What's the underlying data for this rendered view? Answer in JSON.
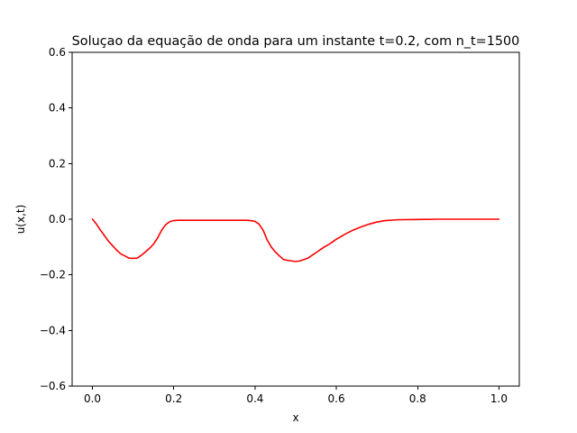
{
  "chart_data": {
    "type": "line",
    "title": "Soluçao da equação de onda para um instante t=0.2, com n_t=1500",
    "xlabel": "x",
    "ylabel": "u(x,t)",
    "xlim": [
      -0.05,
      1.05
    ],
    "ylim": [
      -0.6,
      0.6
    ],
    "xticks": [
      0.0,
      0.2,
      0.4,
      0.6,
      0.8,
      1.0
    ],
    "xtick_labels": [
      "0.0",
      "0.2",
      "0.4",
      "0.6",
      "0.8",
      "1.0"
    ],
    "yticks": [
      -0.6,
      -0.4,
      -0.2,
      0.0,
      0.2,
      0.4,
      0.6
    ],
    "ytick_labels": [
      "−0.6",
      "−0.4",
      "−0.2",
      "0.0",
      "0.2",
      "0.4",
      "0.6"
    ],
    "grid": false,
    "series": [
      {
        "color": "#ff0000",
        "x": [
          0.0,
          0.01,
          0.02,
          0.03,
          0.04,
          0.05,
          0.06,
          0.07,
          0.08,
          0.09,
          0.1,
          0.11,
          0.12,
          0.13,
          0.14,
          0.15,
          0.16,
          0.17,
          0.18,
          0.19,
          0.2,
          0.21,
          0.22,
          0.25,
          0.3,
          0.35,
          0.38,
          0.39,
          0.4,
          0.41,
          0.42,
          0.43,
          0.44,
          0.45,
          0.46,
          0.47,
          0.48,
          0.49,
          0.5,
          0.51,
          0.52,
          0.53,
          0.54,
          0.55,
          0.56,
          0.57,
          0.58,
          0.59,
          0.6,
          0.62,
          0.64,
          0.66,
          0.68,
          0.7,
          0.72,
          0.75,
          0.8,
          0.85,
          0.9,
          0.95,
          1.0
        ],
        "y": [
          0.0,
          -0.018,
          -0.04,
          -0.06,
          -0.08,
          -0.096,
          -0.112,
          -0.125,
          -0.132,
          -0.14,
          -0.141,
          -0.14,
          -0.13,
          -0.118,
          -0.105,
          -0.09,
          -0.068,
          -0.04,
          -0.02,
          -0.009,
          -0.005,
          -0.004,
          -0.004,
          -0.004,
          -0.004,
          -0.004,
          -0.004,
          -0.005,
          -0.008,
          -0.018,
          -0.04,
          -0.075,
          -0.1,
          -0.118,
          -0.132,
          -0.145,
          -0.148,
          -0.15,
          -0.152,
          -0.15,
          -0.145,
          -0.14,
          -0.13,
          -0.12,
          -0.11,
          -0.1,
          -0.092,
          -0.082,
          -0.072,
          -0.055,
          -0.04,
          -0.028,
          -0.018,
          -0.01,
          -0.005,
          -0.002,
          -0.001,
          0.0,
          0.0,
          0.0,
          0.0
        ]
      }
    ]
  }
}
